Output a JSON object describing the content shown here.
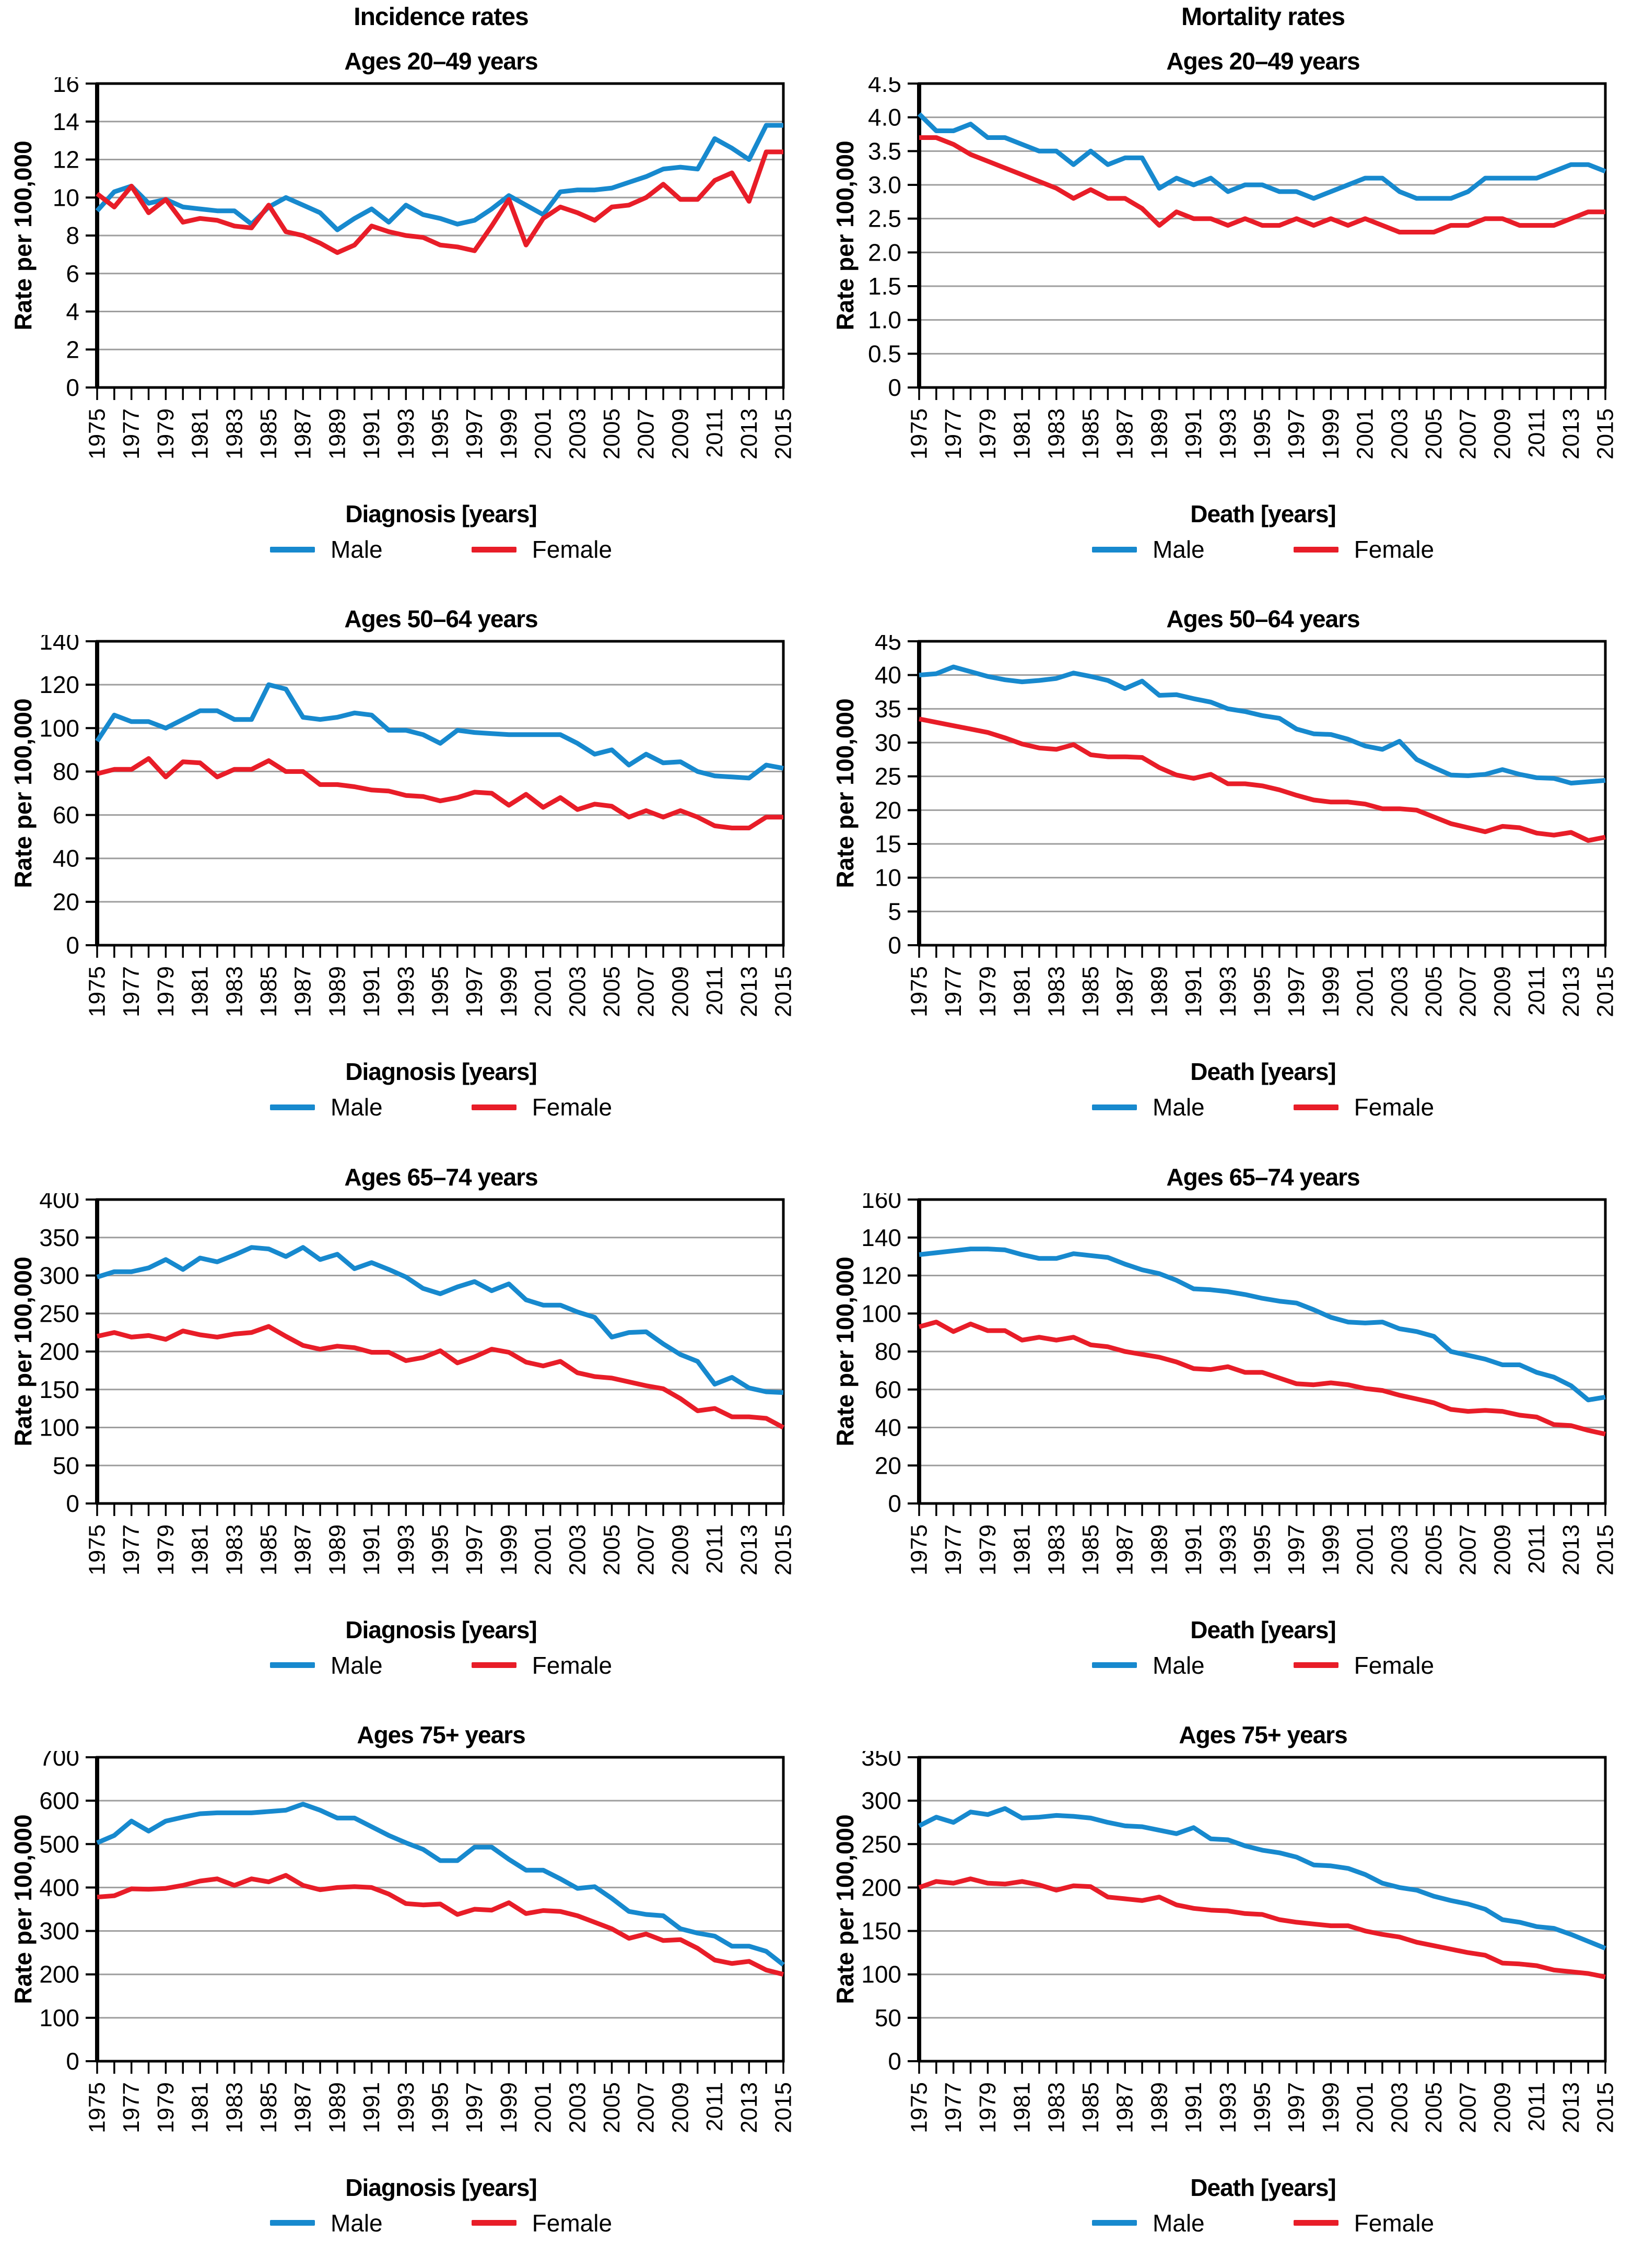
{
  "page": {
    "column_titles": [
      "Incidence rates",
      "Mortality rates"
    ],
    "legend": {
      "male_label": "Male",
      "female_label": "Female"
    },
    "colors": {
      "male": "#1789ce",
      "female": "#e81d28",
      "grid": "#9e9e9e",
      "axis": "#000000"
    }
  },
  "x_axis": {
    "start": 1975,
    "end": 2015,
    "step": 1,
    "tick_labels": [
      "1975",
      "1977",
      "1979",
      "1981",
      "1983",
      "1985",
      "1987",
      "1989",
      "1991",
      "1993",
      "1995",
      "1997",
      "1999",
      "2001",
      "2003",
      "2005",
      "2007",
      "2009",
      "2011",
      "2013",
      "2015"
    ]
  },
  "chart_data": [
    {
      "type": "line",
      "title": "Ages 20–49 years",
      "xlabel": "Diagnosis [years]",
      "ylabel": "Rate per 100,000",
      "ylim": [
        0,
        16
      ],
      "y_ticks": [
        "0",
        "2",
        "4",
        "6",
        "8",
        "10",
        "12",
        "14",
        "16"
      ],
      "grid": "horizontal",
      "legend_position": "bottom",
      "series": [
        {
          "name": "Male",
          "color_key": "male",
          "values": [
            9.3,
            10.3,
            10.6,
            9.7,
            9.9,
            9.5,
            9.4,
            9.3,
            9.3,
            8.6,
            9.5,
            10,
            9.6,
            9.2,
            8.3,
            8.9,
            9.4,
            8.7,
            9.6,
            9.1,
            8.9,
            8.6,
            8.8,
            9.4,
            10.1,
            9.6,
            9.1,
            10.3,
            10.4,
            10.4,
            10.5,
            10.8,
            11.1,
            11.5,
            11.6,
            11.5,
            13.1,
            12.6,
            12,
            13.8,
            13.8
          ]
        },
        {
          "name": "Female",
          "color_key": "female",
          "values": [
            10.2,
            9.5,
            10.6,
            9.2,
            9.9,
            8.7,
            8.9,
            8.8,
            8.5,
            8.4,
            9.6,
            8.2,
            8,
            7.6,
            7.1,
            7.5,
            8.5,
            8.2,
            8,
            7.9,
            7.5,
            7.4,
            7.2,
            8.5,
            9.9,
            7.5,
            8.9,
            9.5,
            9.2,
            8.8,
            9.5,
            9.6,
            10,
            10.7,
            9.9,
            9.9,
            10.9,
            11.3,
            9.8,
            12.4,
            12.4
          ]
        }
      ]
    },
    {
      "type": "line",
      "title": "Ages 20–49 years",
      "xlabel": "Death [years]",
      "ylabel": "Rate per 100,000",
      "ylim": [
        0,
        4.5
      ],
      "y_ticks": [
        "0",
        "0.5",
        "1.0",
        "1.5",
        "2.0",
        "2.5",
        "3.0",
        "3.5",
        "4.0",
        "4.5"
      ],
      "grid": "horizontal",
      "legend_position": "bottom",
      "series": [
        {
          "name": "Male",
          "color_key": "male",
          "values": [
            4.05,
            3.8,
            3.8,
            3.9,
            3.7,
            3.7,
            3.6,
            3.5,
            3.5,
            3.3,
            3.5,
            3.3,
            3.4,
            3.4,
            2.95,
            3.1,
            3,
            3.1,
            2.9,
            3,
            3,
            2.9,
            2.9,
            2.8,
            2.9,
            3,
            3.1,
            3.1,
            2.9,
            2.8,
            2.8,
            2.8,
            2.9,
            3.1,
            3.1,
            3.1,
            3.1,
            3.2,
            3.3,
            3.3,
            3.2
          ]
        },
        {
          "name": "Female",
          "color_key": "female",
          "values": [
            3.7,
            3.7,
            3.6,
            3.45,
            3.35,
            3.25,
            3.15,
            3.05,
            2.95,
            2.8,
            2.93,
            2.8,
            2.8,
            2.65,
            2.4,
            2.6,
            2.5,
            2.5,
            2.4,
            2.5,
            2.4,
            2.4,
            2.5,
            2.4,
            2.5,
            2.4,
            2.5,
            2.4,
            2.3,
            2.3,
            2.3,
            2.4,
            2.4,
            2.5,
            2.5,
            2.4,
            2.4,
            2.4,
            2.5,
            2.6,
            2.6
          ]
        }
      ]
    },
    {
      "type": "line",
      "title": "Ages 50–64 years",
      "xlabel": "Diagnosis [years]",
      "ylabel": "Rate per 100,000",
      "ylim": [
        0,
        140
      ],
      "y_ticks": [
        "0",
        "20",
        "40",
        "60",
        "80",
        "100",
        "120",
        "140"
      ],
      "grid": "horizontal",
      "legend_position": "bottom",
      "series": [
        {
          "name": "Male",
          "color_key": "male",
          "values": [
            94,
            106,
            103,
            103,
            100,
            104,
            108,
            108,
            104,
            104,
            120,
            118,
            105,
            104,
            105,
            107,
            106,
            99,
            99,
            97,
            93,
            99,
            98,
            97.5,
            97,
            97,
            97,
            97,
            93,
            88,
            90,
            83,
            88,
            84,
            84.5,
            80,
            78,
            77.5,
            77,
            83,
            81.5
          ]
        },
        {
          "name": "Female",
          "color_key": "female",
          "values": [
            79,
            81,
            81,
            86,
            77.5,
            84.5,
            84,
            77.5,
            81,
            81,
            85,
            80,
            80,
            74,
            74,
            73,
            71.5,
            71,
            69,
            68.5,
            66.5,
            68,
            70.5,
            70,
            64.5,
            69.5,
            63.5,
            68,
            62.5,
            65,
            64,
            59,
            62,
            59,
            62,
            59,
            55,
            54,
            54,
            59,
            59
          ]
        }
      ]
    },
    {
      "type": "line",
      "title": "Ages 50–64 years",
      "xlabel": "Death [years]",
      "ylabel": "Rate per 100,000",
      "ylim": [
        0,
        45
      ],
      "y_ticks": [
        "0",
        "5",
        "10",
        "15",
        "20",
        "25",
        "30",
        "35",
        "40",
        "45"
      ],
      "grid": "horizontal",
      "legend_position": "bottom",
      "series": [
        {
          "name": "Male",
          "color_key": "male",
          "values": [
            40,
            40.2,
            41.2,
            40.5,
            39.8,
            39.3,
            39,
            39.2,
            39.5,
            40.3,
            39.8,
            39.2,
            38,
            39.1,
            37,
            37.1,
            36.5,
            36,
            35,
            34.6,
            34,
            33.6,
            32,
            31.3,
            31.2,
            30.5,
            29.5,
            29,
            30.2,
            27.5,
            26.3,
            25.2,
            25.1,
            25.3,
            26,
            25.3,
            24.8,
            24.7,
            24,
            24.2,
            24.4
          ]
        },
        {
          "name": "Female",
          "color_key": "female",
          "values": [
            33.5,
            33,
            32.5,
            32,
            31.5,
            30.7,
            29.8,
            29.2,
            29,
            29.7,
            28.2,
            27.9,
            27.9,
            27.8,
            26.3,
            25.2,
            24.7,
            25.3,
            23.9,
            23.9,
            23.6,
            23,
            22.2,
            21.5,
            21.2,
            21.2,
            20.9,
            20.2,
            20.2,
            20,
            19,
            18,
            17.4,
            16.8,
            17.6,
            17.4,
            16.6,
            16.3,
            16.7,
            15.5,
            16
          ]
        }
      ]
    },
    {
      "type": "line",
      "title": "Ages 65–74 years",
      "xlabel": "Diagnosis [years]",
      "ylabel": "Rate per 100,000",
      "ylim": [
        0,
        400
      ],
      "y_ticks": [
        "0",
        "50",
        "100",
        "150",
        "200",
        "250",
        "300",
        "350",
        "400"
      ],
      "grid": "horizontal",
      "legend_position": "bottom",
      "series": [
        {
          "name": "Male",
          "color_key": "male",
          "values": [
            298,
            305,
            305,
            310,
            321,
            308,
            323,
            318,
            327,
            337,
            335,
            325,
            337,
            321,
            328,
            309,
            317,
            308,
            298,
            283,
            276,
            285,
            292,
            280,
            289,
            268,
            261,
            261,
            252,
            245,
            219,
            225,
            226,
            210,
            196,
            187,
            157,
            166,
            152,
            147,
            146
          ]
        },
        {
          "name": "Female",
          "color_key": "female",
          "values": [
            220,
            225,
            219,
            221,
            216,
            227,
            222,
            219,
            223,
            225,
            233,
            220,
            208,
            203,
            207,
            205,
            199,
            199,
            188,
            192,
            201,
            185,
            193,
            203,
            199,
            186,
            181,
            187,
            172,
            167,
            165,
            160,
            155,
            151,
            138,
            122,
            125,
            114,
            114,
            112,
            100
          ]
        }
      ]
    },
    {
      "type": "line",
      "title": "Ages 65–74 years",
      "xlabel": "Death [years]",
      "ylabel": "Rate per 100,000",
      "ylim": [
        0,
        160
      ],
      "y_ticks": [
        "0",
        "20",
        "40",
        "60",
        "80",
        "100",
        "120",
        "140",
        "160"
      ],
      "grid": "horizontal",
      "legend_position": "bottom",
      "series": [
        {
          "name": "Male",
          "color_key": "male",
          "values": [
            131,
            132,
            133,
            134,
            134,
            133.5,
            131,
            129,
            129,
            131.5,
            130.5,
            129.5,
            126,
            123,
            121,
            117.5,
            113,
            112.5,
            111.5,
            110,
            108,
            106.5,
            105.5,
            102,
            98,
            95.5,
            95,
            95.5,
            92,
            90.5,
            88,
            80,
            78,
            76,
            73,
            73,
            69,
            66.5,
            62,
            54.5,
            56
          ]
        },
        {
          "name": "Female",
          "color_key": "female",
          "values": [
            93,
            95.5,
            90.5,
            94.5,
            91,
            91,
            86,
            87.5,
            86,
            87.5,
            83.5,
            82.5,
            80,
            78.5,
            77,
            74.5,
            71,
            70.5,
            72,
            69,
            69,
            66,
            63,
            62.5,
            63.5,
            62.5,
            60.5,
            59.5,
            57,
            55,
            53,
            49.5,
            48.5,
            49,
            48.5,
            46.5,
            45.5,
            41.5,
            41,
            38.5,
            36.5
          ]
        }
      ]
    },
    {
      "type": "line",
      "title": "Ages 75+ years",
      "xlabel": "Diagnosis [years]",
      "ylabel": "Rate per 100,000",
      "ylim": [
        0,
        700
      ],
      "y_ticks": [
        "0",
        "100",
        "200",
        "300",
        "400",
        "500",
        "600",
        "700"
      ],
      "grid": "horizontal",
      "legend_position": "bottom",
      "series": [
        {
          "name": "Male",
          "color_key": "male",
          "values": [
            503,
            520,
            553,
            530,
            553,
            562,
            570,
            572,
            572,
            572,
            575,
            578,
            592,
            578,
            560,
            560,
            540,
            520,
            503,
            488,
            462,
            462,
            493,
            493,
            465,
            440,
            440,
            420,
            398,
            402,
            375,
            345,
            338,
            335,
            305,
            295,
            288,
            265,
            265,
            253,
            222
          ]
        },
        {
          "name": "Female",
          "color_key": "female",
          "values": [
            378,
            381,
            397,
            396,
            398,
            405,
            415,
            420,
            405,
            420,
            413,
            428,
            405,
            395,
            400,
            402,
            400,
            385,
            363,
            360,
            362,
            338,
            350,
            348,
            365,
            340,
            347,
            345,
            335,
            320,
            305,
            283,
            293,
            278,
            280,
            260,
            233,
            225,
            230,
            210,
            200
          ]
        }
      ]
    },
    {
      "type": "line",
      "title": "Ages 75+ years",
      "xlabel": "Death [years]",
      "ylabel": "Rate per 100,000",
      "ylim": [
        0,
        350
      ],
      "y_ticks": [
        "0",
        "50",
        "100",
        "150",
        "200",
        "250",
        "300",
        "350"
      ],
      "grid": "horizontal",
      "legend_position": "bottom",
      "series": [
        {
          "name": "Male",
          "color_key": "male",
          "values": [
            271,
            281,
            275,
            287,
            284,
            291,
            280,
            281,
            283,
            282,
            280,
            275,
            271,
            270,
            266,
            262,
            269,
            256,
            255,
            248,
            243,
            240,
            235,
            226,
            225,
            222,
            215,
            205,
            200,
            197,
            190,
            185,
            181,
            175,
            163,
            160,
            155,
            153,
            146,
            138,
            130
          ]
        },
        {
          "name": "Female",
          "color_key": "female",
          "values": [
            200,
            207,
            205,
            210,
            205,
            204,
            207,
            203,
            197,
            202,
            201,
            189,
            187,
            185,
            189,
            180,
            176,
            174,
            173,
            170,
            169,
            163,
            160,
            158,
            156,
            156,
            150,
            146,
            143,
            137,
            133,
            129,
            125,
            122,
            113,
            112,
            110,
            105,
            103,
            101,
            97
          ]
        }
      ]
    }
  ]
}
